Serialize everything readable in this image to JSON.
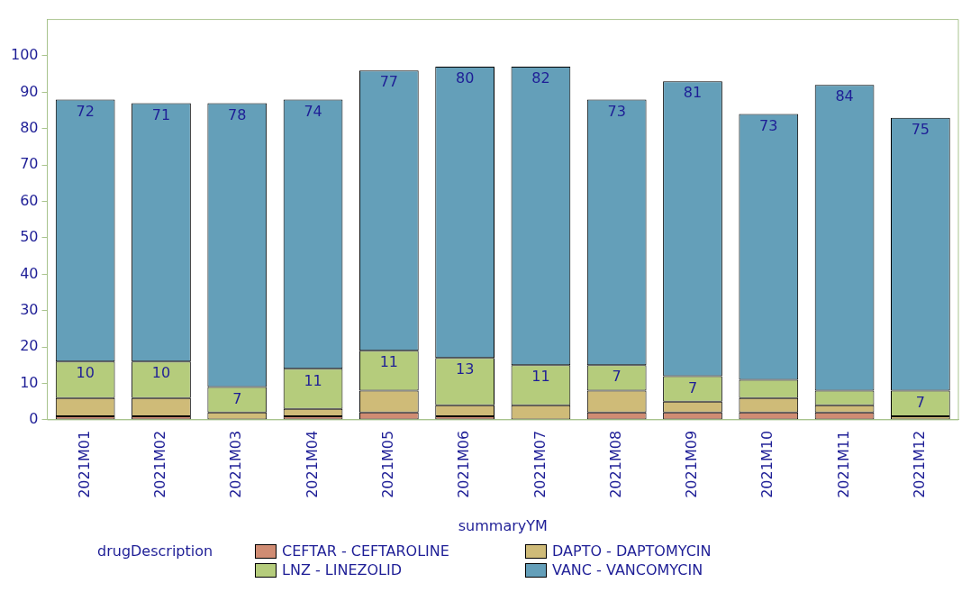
{
  "chart_data": {
    "type": "bar",
    "stacked": true,
    "xlabel": "summaryYM",
    "legend_title": "drugDescription",
    "legend": "bottom",
    "grid": false,
    "categories": [
      "2021M01",
      "2021M02",
      "2021M03",
      "2021M04",
      "2021M05",
      "2021M06",
      "2021M07",
      "2021M08",
      "2021M09",
      "2021M10",
      "2021M11",
      "2021M12"
    ],
    "ylim": [
      0,
      110
    ],
    "yticks": [
      0,
      10,
      20,
      30,
      40,
      50,
      60,
      70,
      80,
      90,
      100
    ],
    "series": [
      {
        "name": "CEFTAR - CEFTAROLINE",
        "color": "#d08c73",
        "values": [
          1,
          1,
          0,
          1,
          2,
          1,
          0,
          2,
          2,
          2,
          2,
          0
        ]
      },
      {
        "name": "DAPTO - DAPTOMYCIN",
        "color": "#cfbb78",
        "values": [
          5,
          5,
          2,
          2,
          6,
          3,
          4,
          6,
          3,
          4,
          2,
          1
        ]
      },
      {
        "name": "LNZ - LINEZOLID",
        "color": "#b5cc7c",
        "values": [
          10,
          10,
          7,
          11,
          11,
          13,
          11,
          7,
          7,
          5,
          4,
          7
        ],
        "value_labels": [
          "10",
          "10",
          "7",
          "11",
          "11",
          "13",
          "11",
          "7",
          "7",
          null,
          null,
          "7"
        ]
      },
      {
        "name": "VANC - VANCOMYCIN",
        "color": "#649fb9",
        "values": [
          72,
          71,
          78,
          74,
          77,
          80,
          82,
          73,
          81,
          73,
          84,
          75
        ],
        "value_labels": [
          "72",
          "71",
          "78",
          "74",
          "77",
          "80",
          "82",
          "73",
          "81",
          "73",
          "84",
          "75"
        ]
      }
    ]
  }
}
